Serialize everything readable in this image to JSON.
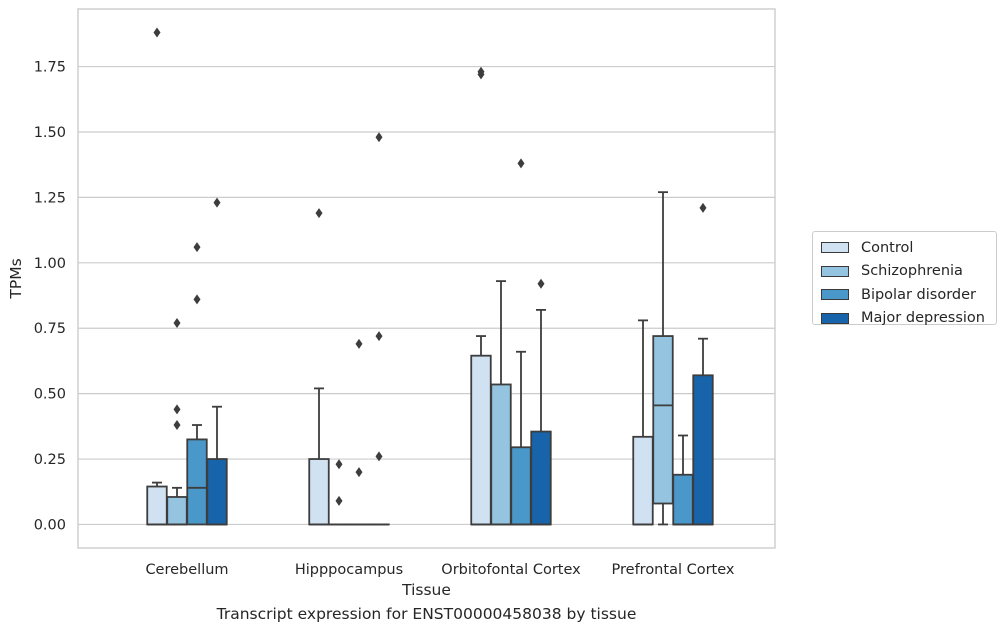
{
  "caption": "Transcript expression for ENST00000458038 by tissue",
  "chart_data": {
    "type": "boxplot",
    "title": "",
    "xlabel": "Tissue",
    "ylabel": "TPMs",
    "ylim": [
      -0.09,
      1.97
    ],
    "yticks": [
      "0.00",
      "0.25",
      "0.50",
      "0.75",
      "1.00",
      "1.25",
      "1.50",
      "1.75"
    ],
    "grid": "horizontal",
    "legend_position": "right",
    "categories": [
      "Cerebellum",
      "Hipppocampus",
      "Orbitofontal Cortex",
      "Prefrontal Cortex"
    ],
    "series": [
      {
        "name": "Control",
        "color": "#d0e1f2",
        "boxes": [
          {
            "whislo": 0,
            "q1": 0,
            "med": 0,
            "q3": 0.145,
            "whishi": 0.16,
            "fliers": [
              1.88
            ]
          },
          {
            "whislo": 0,
            "q1": 0,
            "med": 0,
            "q3": 0.25,
            "whishi": 0.52,
            "fliers": [
              1.19
            ]
          },
          {
            "whislo": 0,
            "q1": 0,
            "med": 0,
            "q3": 0.645,
            "whishi": 0.72,
            "fliers": [
              1.72,
              1.73
            ]
          },
          {
            "whislo": 0,
            "q1": 0,
            "med": 0,
            "q3": 0.335,
            "whishi": 0.78,
            "fliers": []
          }
        ]
      },
      {
        "name": "Schizophrenia",
        "color": "#94c4df",
        "boxes": [
          {
            "whislo": 0,
            "q1": 0,
            "med": 0,
            "q3": 0.105,
            "whishi": 0.14,
            "fliers": [
              0.38,
              0.44,
              0.77
            ]
          },
          {
            "whislo": 0,
            "q1": 0,
            "med": 0,
            "q3": 0,
            "whishi": 0,
            "fliers": [
              0.09,
              0.23
            ]
          },
          {
            "whislo": 0,
            "q1": 0,
            "med": 0,
            "q3": 0.535,
            "whishi": 0.93,
            "fliers": []
          },
          {
            "whislo": 0,
            "q1": 0.08,
            "med": 0.455,
            "q3": 0.72,
            "whishi": 1.27,
            "fliers": []
          }
        ]
      },
      {
        "name": "Bipolar disorder",
        "color": "#4a98c9",
        "boxes": [
          {
            "whislo": 0,
            "q1": 0,
            "med": 0.14,
            "q3": 0.325,
            "whishi": 0.38,
            "fliers": [
              0.86,
              1.06
            ]
          },
          {
            "whislo": 0,
            "q1": 0,
            "med": 0,
            "q3": 0,
            "whishi": 0,
            "fliers": [
              0.2,
              0.69
            ]
          },
          {
            "whislo": 0,
            "q1": 0,
            "med": 0,
            "q3": 0.295,
            "whishi": 0.66,
            "fliers": [
              1.38
            ]
          },
          {
            "whislo": 0,
            "q1": 0,
            "med": 0,
            "q3": 0.19,
            "whishi": 0.34,
            "fliers": []
          }
        ]
      },
      {
        "name": "Major depression",
        "color": "#1764ab",
        "boxes": [
          {
            "whislo": 0,
            "q1": 0,
            "med": 0,
            "q3": 0.25,
            "whishi": 0.45,
            "fliers": [
              1.23
            ]
          },
          {
            "whislo": 0,
            "q1": 0,
            "med": 0,
            "q3": 0,
            "whishi": 0,
            "fliers": [
              0.26,
              0.72,
              1.48
            ]
          },
          {
            "whislo": 0,
            "q1": 0,
            "med": 0,
            "q3": 0.355,
            "whishi": 0.82,
            "fliers": [
              0.92
            ]
          },
          {
            "whislo": 0,
            "q1": 0,
            "med": 0,
            "q3": 0.57,
            "whishi": 0.71,
            "fliers": [
              1.21
            ]
          }
        ]
      }
    ]
  }
}
